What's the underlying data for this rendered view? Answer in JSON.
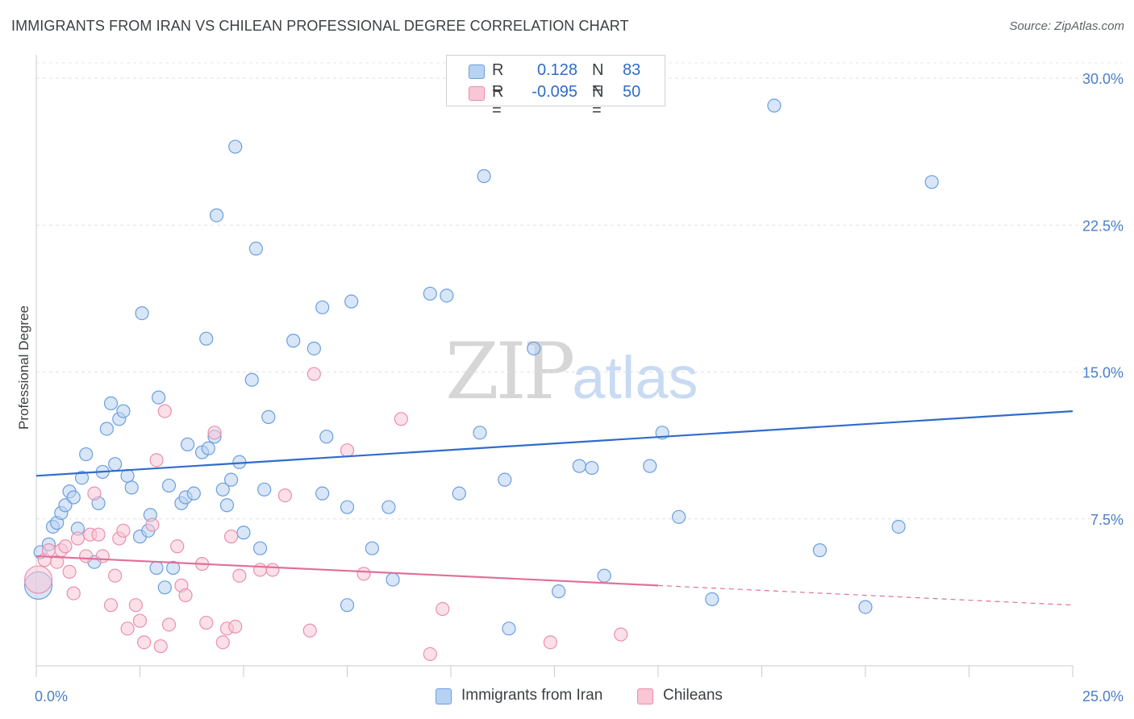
{
  "header": {
    "title": "IMMIGRANTS FROM IRAN VS CHILEAN PROFESSIONAL DEGREE CORRELATION CHART",
    "source": "Source: ZipAtlas.com"
  },
  "watermark": {
    "zip": "ZIP",
    "atlas": "atlas"
  },
  "legend": {
    "rows": [
      {
        "r_label": "R =",
        "r_value": "0.128",
        "n_label": "N =",
        "n_value": "83",
        "color": "#a8c8f0"
      },
      {
        "r_label": "R =",
        "r_value": "-0.095",
        "n_label": "N =",
        "n_value": "50",
        "color": "#f5b8cb"
      }
    ]
  },
  "bottom_legend": {
    "items": [
      {
        "label": "Immigrants from Iran",
        "color": "#b8d2f3"
      },
      {
        "label": "Chileans",
        "color": "#f8c6d5"
      }
    ]
  },
  "chart_data": {
    "type": "scatter",
    "title": "IMMIGRANTS FROM IRAN VS CHILEAN PROFESSIONAL DEGREE CORRELATION CHART",
    "ylabel": "Professional Degree",
    "xlim": [
      0,
      25
    ],
    "ylim": [
      0,
      30
    ],
    "x_tick_labels": [
      "0.0%",
      "25.0%"
    ],
    "y_ticks": [
      7.5,
      15.0,
      22.5,
      30.0
    ],
    "y_tick_labels": [
      "7.5%",
      "15.0%",
      "22.5%",
      "30.0%"
    ],
    "grid": true,
    "series": [
      {
        "name": "Immigrants from Iran",
        "color": "#6a9fde",
        "fill": "#b8d2f3",
        "trend": {
          "x": [
            0,
            25
          ],
          "y": [
            9.7,
            13.0
          ],
          "color": "#2f6cc9"
        },
        "points": [
          [
            0.1,
            5.8
          ],
          [
            0.3,
            6.2
          ],
          [
            0.4,
            7.1
          ],
          [
            0.5,
            7.3
          ],
          [
            0.6,
            7.8
          ],
          [
            0.7,
            8.2
          ],
          [
            0.8,
            8.9
          ],
          [
            0.9,
            8.6
          ],
          [
            1.0,
            7.0
          ],
          [
            1.1,
            9.6
          ],
          [
            1.2,
            10.8
          ],
          [
            1.4,
            5.3
          ],
          [
            1.5,
            8.3
          ],
          [
            1.6,
            9.9
          ],
          [
            1.7,
            12.1
          ],
          [
            1.8,
            13.4
          ],
          [
            1.9,
            10.3
          ],
          [
            2.0,
            12.6
          ],
          [
            2.1,
            13.0
          ],
          [
            2.2,
            9.7
          ],
          [
            2.3,
            9.1
          ],
          [
            2.5,
            6.6
          ],
          [
            2.55,
            18.0
          ],
          [
            2.7,
            6.9
          ],
          [
            2.75,
            7.7
          ],
          [
            2.9,
            5.0
          ],
          [
            2.95,
            13.7
          ],
          [
            3.1,
            4.0
          ],
          [
            3.2,
            9.2
          ],
          [
            3.3,
            5.0
          ],
          [
            3.5,
            8.3
          ],
          [
            3.6,
            8.6
          ],
          [
            3.65,
            11.3
          ],
          [
            3.8,
            8.8
          ],
          [
            4.0,
            10.9
          ],
          [
            4.1,
            16.7
          ],
          [
            4.15,
            11.1
          ],
          [
            4.3,
            11.7
          ],
          [
            4.35,
            23.0
          ],
          [
            4.5,
            9.0
          ],
          [
            4.6,
            8.2
          ],
          [
            4.7,
            9.5
          ],
          [
            4.8,
            26.5
          ],
          [
            4.9,
            10.4
          ],
          [
            5.0,
            6.8
          ],
          [
            5.2,
            14.6
          ],
          [
            5.3,
            21.3
          ],
          [
            5.4,
            6.0
          ],
          [
            5.5,
            9.0
          ],
          [
            5.6,
            12.7
          ],
          [
            6.2,
            16.6
          ],
          [
            6.7,
            16.2
          ],
          [
            6.9,
            18.3
          ],
          [
            7.0,
            11.7
          ],
          [
            6.9,
            8.8
          ],
          [
            7.5,
            3.1
          ],
          [
            7.5,
            8.1
          ],
          [
            7.6,
            18.6
          ],
          [
            8.1,
            6.0
          ],
          [
            8.5,
            8.1
          ],
          [
            8.6,
            4.4
          ],
          [
            9.5,
            19.0
          ],
          [
            9.9,
            18.9
          ],
          [
            10.2,
            8.8
          ],
          [
            10.7,
            11.9
          ],
          [
            10.8,
            25.0
          ],
          [
            11.3,
            9.5
          ],
          [
            11.4,
            1.9
          ],
          [
            12.0,
            16.2
          ],
          [
            12.6,
            3.8
          ],
          [
            13.1,
            10.2
          ],
          [
            13.4,
            10.1
          ],
          [
            13.7,
            4.6
          ],
          [
            14.8,
            10.2
          ],
          [
            15.1,
            11.9
          ],
          [
            15.5,
            7.6
          ],
          [
            16.3,
            3.4
          ],
          [
            17.8,
            28.6
          ],
          [
            18.9,
            5.9
          ],
          [
            20.0,
            3.0
          ],
          [
            20.8,
            7.1
          ],
          [
            21.6,
            24.7
          ],
          [
            0.05,
            4.1
          ]
        ]
      },
      {
        "name": "Chileans",
        "color": "#ea8fae",
        "fill": "#f8c6d5",
        "trend": {
          "x": [
            0,
            15
          ],
          "y": [
            5.6,
            4.1
          ],
          "color": "#e0709a"
        },
        "trend_dashed": {
          "x": [
            15,
            25
          ],
          "y": [
            4.1,
            3.1
          ]
        },
        "points": [
          [
            0.05,
            4.4
          ],
          [
            0.2,
            5.4
          ],
          [
            0.3,
            5.9
          ],
          [
            0.5,
            5.3
          ],
          [
            0.6,
            5.9
          ],
          [
            0.7,
            6.1
          ],
          [
            0.8,
            4.8
          ],
          [
            0.9,
            3.7
          ],
          [
            1.0,
            6.5
          ],
          [
            1.2,
            5.6
          ],
          [
            1.3,
            6.7
          ],
          [
            1.4,
            8.8
          ],
          [
            1.5,
            6.7
          ],
          [
            1.6,
            5.6
          ],
          [
            1.8,
            3.1
          ],
          [
            1.9,
            4.6
          ],
          [
            2.0,
            6.5
          ],
          [
            2.1,
            6.9
          ],
          [
            2.2,
            1.9
          ],
          [
            2.4,
            3.1
          ],
          [
            2.5,
            2.3
          ],
          [
            2.6,
            1.2
          ],
          [
            2.8,
            7.2
          ],
          [
            2.9,
            10.5
          ],
          [
            3.0,
            1.0
          ],
          [
            3.1,
            13.0
          ],
          [
            3.2,
            2.1
          ],
          [
            3.4,
            6.1
          ],
          [
            3.5,
            4.1
          ],
          [
            3.6,
            3.6
          ],
          [
            4.0,
            5.2
          ],
          [
            4.1,
            2.2
          ],
          [
            4.3,
            11.9
          ],
          [
            4.5,
            1.2
          ],
          [
            4.6,
            1.9
          ],
          [
            4.7,
            6.6
          ],
          [
            4.8,
            2.0
          ],
          [
            4.9,
            4.6
          ],
          [
            5.4,
            4.9
          ],
          [
            5.7,
            4.9
          ],
          [
            6.0,
            8.7
          ],
          [
            6.6,
            1.8
          ],
          [
            6.7,
            14.9
          ],
          [
            7.5,
            11.0
          ],
          [
            7.9,
            4.7
          ],
          [
            8.8,
            12.6
          ],
          [
            9.5,
            0.6
          ],
          [
            9.8,
            2.9
          ],
          [
            12.4,
            1.2
          ],
          [
            14.1,
            1.6
          ]
        ]
      }
    ]
  }
}
